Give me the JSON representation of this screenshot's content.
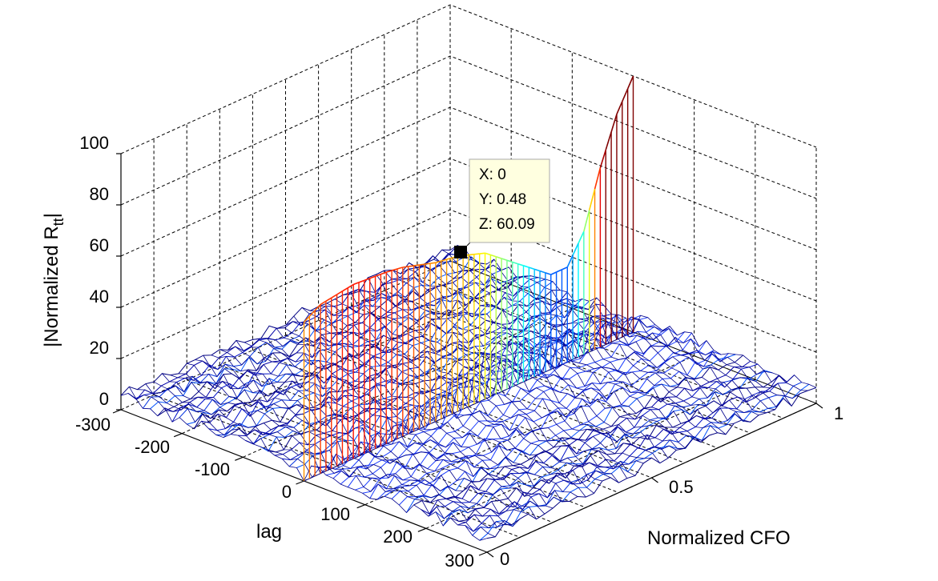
{
  "chart_data": {
    "type": "surface",
    "view": "3d-mesh",
    "colormap": "jet",
    "grid": true,
    "xlabel": "Normalized CFO",
    "ylabel": "lag",
    "zlabel": "|Normalized R",
    "zlabel_subscript": "tt",
    "zlabel_suffix": "|",
    "x_ticks": [
      "0",
      "0.5",
      "1"
    ],
    "y_ticks": [
      "-300",
      "-200",
      "-100",
      "0",
      "100",
      "200",
      "300"
    ],
    "z_ticks": [
      "0",
      "20",
      "40",
      "60",
      "80",
      "100"
    ],
    "xlim": [
      0,
      1
    ],
    "ylim": [
      -300,
      300
    ],
    "zlim": [
      0,
      100
    ],
    "zero_lag_profile": {
      "cfo": [
        0,
        0.05,
        0.1,
        0.15,
        0.2,
        0.25,
        0.3,
        0.35,
        0.4,
        0.45,
        0.48,
        0.55,
        0.6,
        0.65,
        0.7,
        0.75,
        0.8,
        0.85,
        0.9,
        0.95,
        1.0
      ],
      "value": [
        62,
        66,
        67,
        68,
        67.5,
        67,
        66,
        64,
        62,
        61,
        60.09,
        57,
        52,
        47,
        42,
        37,
        37,
        48,
        70,
        88,
        100
      ]
    },
    "data_tip": {
      "x_label": "X: 0",
      "y_label": "Y: 0.48",
      "z_label": "Z: 60.09",
      "x": 0,
      "y": 0.48,
      "z": 60.09
    }
  }
}
